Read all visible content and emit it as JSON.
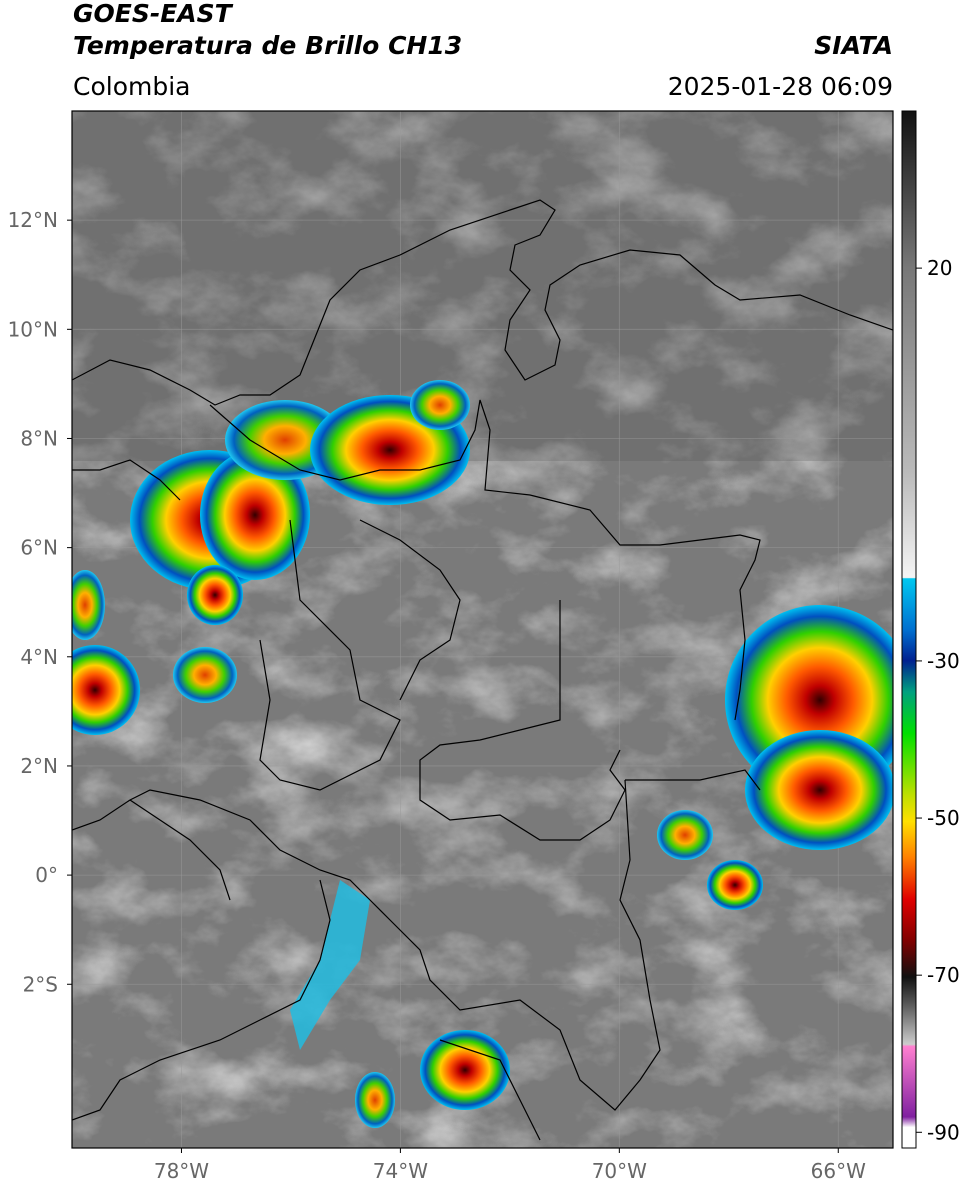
{
  "header": {
    "title": "GOES-EAST",
    "subtitle": "Temperatura de Brillo CH13",
    "source": "SIATA",
    "region": "Colombia",
    "datetime": "2025-01-28 06:09"
  },
  "map": {
    "xlim": [
      -80,
      -65
    ],
    "ylim": [
      -5,
      14
    ],
    "grid": true,
    "xticks": [
      {
        "value": -78,
        "label": "78°W"
      },
      {
        "value": -74,
        "label": "74°W"
      },
      {
        "value": -70,
        "label": "70°W"
      },
      {
        "value": -66,
        "label": "66°W"
      }
    ],
    "yticks": [
      {
        "value": 12,
        "label": "12°N"
      },
      {
        "value": 10,
        "label": "10°N"
      },
      {
        "value": 8,
        "label": "8°N"
      },
      {
        "value": 6,
        "label": "6°N"
      },
      {
        "value": 4,
        "label": "4°N"
      },
      {
        "value": 2,
        "label": "2°N"
      },
      {
        "value": 0,
        "label": "0°"
      },
      {
        "value": -2,
        "label": "2°S"
      }
    ]
  },
  "colorbar": {
    "lim": [
      -92,
      40
    ],
    "ticks": [
      20,
      -30,
      -50,
      -70,
      -90
    ]
  }
}
